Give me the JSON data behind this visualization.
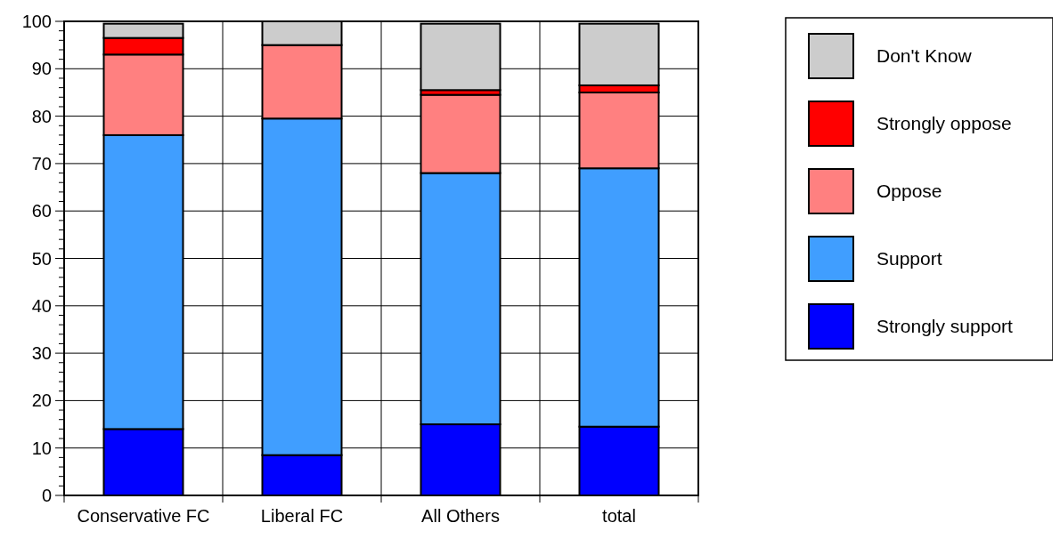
{
  "chart_data": {
    "type": "bar",
    "stacked": true,
    "categories": [
      "Conservative FC",
      "Liberal FC",
      "All Others",
      "total"
    ],
    "series": [
      {
        "name": "Strongly support",
        "color": "#0000ff",
        "values": [
          14,
          8.5,
          15,
          14.5
        ]
      },
      {
        "name": "Support",
        "color": "#409eff",
        "values": [
          62,
          71,
          53,
          54.5
        ]
      },
      {
        "name": "Oppose",
        "color": "#ff8080",
        "values": [
          17,
          15.5,
          16.5,
          16
        ]
      },
      {
        "name": "Strongly oppose",
        "color": "#ff0000",
        "values": [
          3.5,
          0,
          1,
          1.5
        ]
      },
      {
        "name": "Don't Know",
        "color": "#cccccc",
        "values": [
          3,
          5,
          14,
          13
        ]
      }
    ],
    "ylim": [
      0,
      100
    ],
    "yticks": [
      0,
      {
        "value": 2,
        "label": null
      },
      {
        "value": 4,
        "label": null
      },
      {
        "value": 6,
        "label": null
      },
      {
        "value": 8,
        "label": null
      },
      10,
      {
        "value": 12,
        "label": null
      },
      {
        "value": 14,
        "label": null
      },
      {
        "value": 16,
        "label": null
      },
      {
        "value": 18,
        "label": null
      },
      20,
      {
        "value": 22,
        "label": null
      },
      {
        "value": 24,
        "label": null
      },
      {
        "value": 26,
        "label": null
      },
      {
        "value": 28,
        "label": null
      },
      30,
      {
        "value": 32,
        "label": null
      },
      {
        "value": 34,
        "label": null
      },
      {
        "value": 36,
        "label": null
      },
      {
        "value": 38,
        "label": null
      },
      40,
      {
        "value": 42,
        "label": null
      },
      {
        "value": 44,
        "label": null
      },
      {
        "value": 46,
        "label": null
      },
      {
        "value": 48,
        "label": null
      },
      50,
      {
        "value": 52,
        "label": null
      },
      {
        "value": 54,
        "label": null
      },
      {
        "value": 56,
        "label": null
      },
      {
        "value": 58,
        "label": null
      },
      60,
      {
        "value": 62,
        "label": null
      },
      {
        "value": 64,
        "label": null
      },
      {
        "value": 66,
        "label": null
      },
      {
        "value": 68,
        "label": null
      },
      70,
      {
        "value": 72,
        "label": null
      },
      {
        "value": 74,
        "label": null
      },
      {
        "value": 76,
        "label": null
      },
      {
        "value": 78,
        "label": null
      },
      80,
      {
        "value": 82,
        "label": null
      },
      {
        "value": 84,
        "label": null
      },
      {
        "value": 86,
        "label": null
      },
      {
        "value": 88,
        "label": null
      },
      90,
      {
        "value": 92,
        "label": null
      },
      {
        "value": 94,
        "label": null
      },
      {
        "value": 96,
        "label": null
      },
      {
        "value": 98,
        "label": null
      },
      100
    ],
    "grid": true,
    "legend": "right"
  }
}
